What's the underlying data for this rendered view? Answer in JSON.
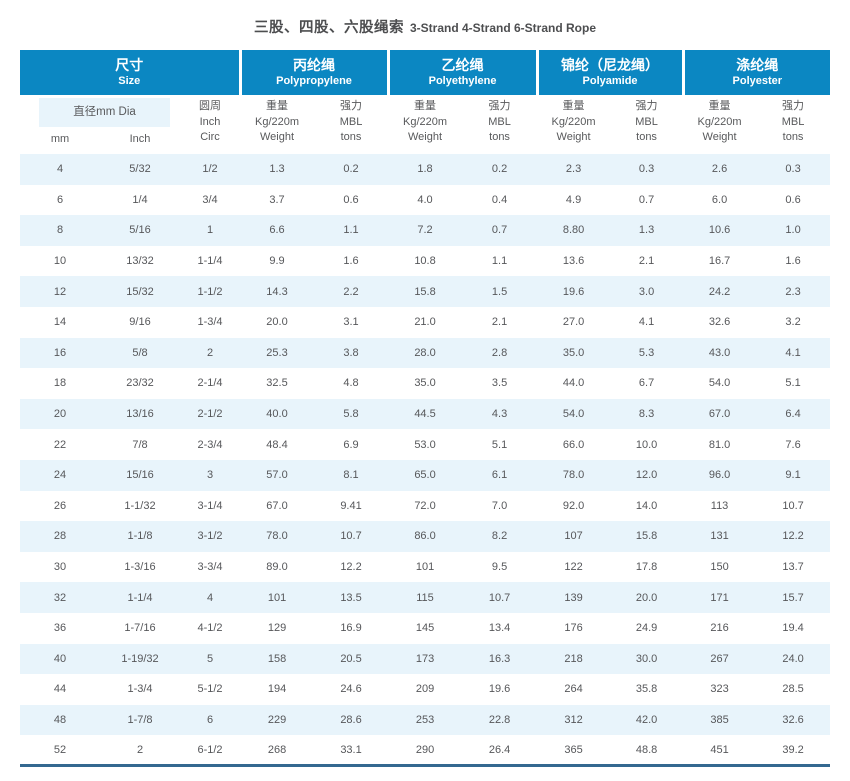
{
  "page": {
    "title_zh": "三股、四股、六股绳索",
    "title_en": "3-Strand 4-Strand 6-Strand Rope"
  },
  "colors": {
    "header_blue": "#0b87c2",
    "row_stripe": "#e8f4fb",
    "text_gray": "#58595b",
    "bottom_rule": "#346890"
  },
  "table": {
    "groups": [
      {
        "zh": "尺寸",
        "en": "Size"
      },
      {
        "zh": "丙纶绳",
        "en": "Polypropylene"
      },
      {
        "zh": "乙纶绳",
        "en": "Polyethylene"
      },
      {
        "zh": "锦纶（尼龙绳）",
        "en": "Polyamide"
      },
      {
        "zh": "涤纶绳",
        "en": "Polyester"
      }
    ],
    "sub": {
      "dia": "直径mm Dia",
      "mm": "mm",
      "inch": "Inch",
      "circ": "圆周\nInch\nCirc",
      "weight": "重量\nKg/220m\nWeight",
      "strength": "强力\nMBL\ntons"
    },
    "rows": [
      [
        "4",
        "5/32",
        "1/2",
        "1.3",
        "0.2",
        "1.8",
        "0.2",
        "2.3",
        "0.3",
        "2.6",
        "0.3"
      ],
      [
        "6",
        "1/4",
        "3/4",
        "3.7",
        "0.6",
        "4.0",
        "0.4",
        "4.9",
        "0.7",
        "6.0",
        "0.6"
      ],
      [
        "8",
        "5/16",
        "1",
        "6.6",
        "1.1",
        "7.2",
        "0.7",
        "8.80",
        "1.3",
        "10.6",
        "1.0"
      ],
      [
        "10",
        "13/32",
        "1-1/4",
        "9.9",
        "1.6",
        "10.8",
        "1.1",
        "13.6",
        "2.1",
        "16.7",
        "1.6"
      ],
      [
        "12",
        "15/32",
        "1-1/2",
        "14.3",
        "2.2",
        "15.8",
        "1.5",
        "19.6",
        "3.0",
        "24.2",
        "2.3"
      ],
      [
        "14",
        "9/16",
        "1-3/4",
        "20.0",
        "3.1",
        "21.0",
        "2.1",
        "27.0",
        "4.1",
        "32.6",
        "3.2"
      ],
      [
        "16",
        "5/8",
        "2",
        "25.3",
        "3.8",
        "28.0",
        "2.8",
        "35.0",
        "5.3",
        "43.0",
        "4.1"
      ],
      [
        "18",
        "23/32",
        "2-1/4",
        "32.5",
        "4.8",
        "35.0",
        "3.5",
        "44.0",
        "6.7",
        "54.0",
        "5.1"
      ],
      [
        "20",
        "13/16",
        "2-1/2",
        "40.0",
        "5.8",
        "44.5",
        "4.3",
        "54.0",
        "8.3",
        "67.0",
        "6.4"
      ],
      [
        "22",
        "7/8",
        "2-3/4",
        "48.4",
        "6.9",
        "53.0",
        "5.1",
        "66.0",
        "10.0",
        "81.0",
        "7.6"
      ],
      [
        "24",
        "15/16",
        "3",
        "57.0",
        "8.1",
        "65.0",
        "6.1",
        "78.0",
        "12.0",
        "96.0",
        "9.1"
      ],
      [
        "26",
        "1-1/32",
        "3-1/4",
        "67.0",
        "9.41",
        "72.0",
        "7.0",
        "92.0",
        "14.0",
        "113",
        "10.7"
      ],
      [
        "28",
        "1-1/8",
        "3-1/2",
        "78.0",
        "10.7",
        "86.0",
        "8.2",
        "107",
        "15.8",
        "131",
        "12.2"
      ],
      [
        "30",
        "1-3/16",
        "3-3/4",
        "89.0",
        "12.2",
        "101",
        "9.5",
        "122",
        "17.8",
        "150",
        "13.7"
      ],
      [
        "32",
        "1-1/4",
        "4",
        "101",
        "13.5",
        "115",
        "10.7",
        "139",
        "20.0",
        "171",
        "15.7"
      ],
      [
        "36",
        "1-7/16",
        "4-1/2",
        "129",
        "16.9",
        "145",
        "13.4",
        "176",
        "24.9",
        "216",
        "19.4"
      ],
      [
        "40",
        "1-19/32",
        "5",
        "158",
        "20.5",
        "173",
        "16.3",
        "218",
        "30.0",
        "267",
        "24.0"
      ],
      [
        "44",
        "1-3/4",
        "5-1/2",
        "194",
        "24.6",
        "209",
        "19.6",
        "264",
        "35.8",
        "323",
        "28.5"
      ],
      [
        "48",
        "1-7/8",
        "6",
        "229",
        "28.6",
        "253",
        "22.8",
        "312",
        "42.0",
        "385",
        "32.6"
      ],
      [
        "52",
        "2",
        "6-1/2",
        "268",
        "33.1",
        "290",
        "26.4",
        "365",
        "48.8",
        "451",
        "39.2"
      ]
    ]
  }
}
